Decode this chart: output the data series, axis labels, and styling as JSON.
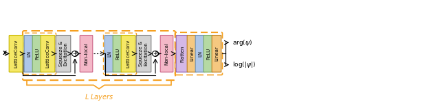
{
  "fig_width": 6.4,
  "fig_height": 1.49,
  "dpi": 100,
  "background": "#ffffff",
  "latticeconv_color": "#f5e866",
  "latticeconv_border": "#c8b800",
  "ln_color": "#aec6e8",
  "ln_border": "#7090b0",
  "relu_color": "#b5d9a3",
  "relu_border": "#7aaa60",
  "se_color": "#d3d3d3",
  "se_border": "#808080",
  "nonlocal_color": "#f4b8c8",
  "nonlocal_border": "#cc6688",
  "flatten_color": "#d4b8e8",
  "flatten_border": "#9060b0",
  "linear_color": "#f5c880",
  "linear_border": "#c08020",
  "outer_box_color": "#f5a020",
  "output_arg": "arg(ψ)",
  "output_log": "log(|ψ|)",
  "L_layers_label": "L Layers"
}
